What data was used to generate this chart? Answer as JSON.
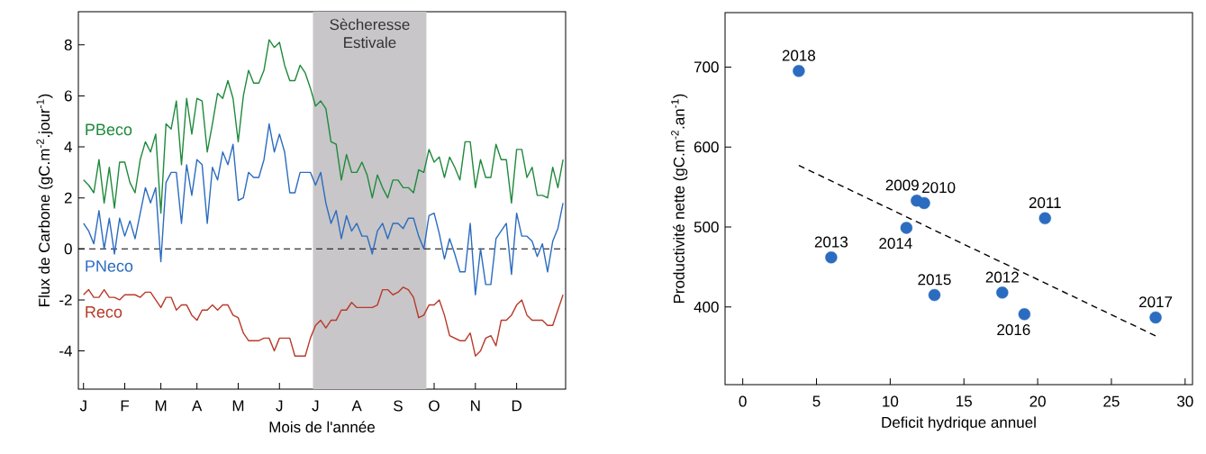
{
  "chart_data": [
    {
      "type": "line",
      "xlabel": "Mois de l'année",
      "ylabel": "Flux de Carbone (gC.m$^{-2}$.jour$^{-1}$)",
      "categories": [
        "J",
        null,
        null,
        null,
        null,
        null,
        null,
        null,
        "F",
        null,
        null,
        null,
        null,
        null,
        null,
        "M",
        null,
        null,
        null,
        null,
        null,
        null,
        "A",
        null,
        null,
        null,
        null,
        null,
        null,
        null,
        "M",
        null,
        null,
        null,
        null,
        null,
        null,
        null,
        "J",
        null,
        null,
        null,
        null,
        null,
        null,
        "J",
        null,
        null,
        null,
        null,
        null,
        null,
        null,
        "A",
        null,
        null,
        null,
        null,
        null,
        null,
        null,
        "S",
        null,
        null,
        null,
        null,
        null,
        null,
        "O",
        null,
        null,
        null,
        null,
        null,
        null,
        null,
        "N",
        null,
        null,
        null,
        null,
        null,
        null,
        null,
        "D",
        null,
        null,
        null,
        null,
        null,
        null,
        null,
        null,
        null
      ],
      "ylim": [
        -5.5,
        9.3
      ],
      "yticks": [
        -4,
        -2,
        0,
        2,
        4,
        6,
        8
      ],
      "annotations": [
        "Sècheresse Estivale"
      ],
      "ref_lines": [
        {
          "axis": "y",
          "value": 0,
          "color": "#000000",
          "line_style": "dashed"
        }
      ],
      "series": [
        {
          "name": "PBeco",
          "color": "#1f8a3c",
          "values": [
            2.7,
            2.5,
            2.2,
            3.5,
            1.8,
            3.2,
            1.6,
            3.4,
            3.4,
            2.6,
            2.2,
            3.5,
            4.2,
            3.8,
            4.5,
            1.4,
            4.9,
            4.7,
            5.8,
            3.3,
            5.9,
            4.5,
            5.9,
            5.8,
            3.8,
            4.9,
            6.1,
            5.9,
            6.6,
            5.9,
            4.2,
            6.0,
            7.0,
            6.5,
            6.5,
            7.0,
            8.2,
            7.9,
            8.1,
            7.2,
            6.6,
            6.6,
            7.2,
            6.9,
            6.3,
            5.6,
            5.8,
            5.5,
            4.2,
            4.1,
            2.7,
            3.7,
            3.0,
            3.0,
            3.4,
            2.9,
            2.0,
            2.9,
            2.4,
            2.0,
            2.7,
            2.7,
            2.4,
            2.4,
            2.2,
            3.1,
            3.0,
            3.9,
            3.4,
            3.6,
            2.8,
            3.6,
            3.2,
            2.7,
            4.2,
            4.2,
            2.4,
            3.5,
            2.8,
            2.8,
            4.1,
            3.5,
            3.5,
            1.8,
            3.9,
            3.9,
            2.8,
            3.2,
            2.1,
            2.1,
            2.0,
            3.2,
            2.4,
            3.5
          ]
        },
        {
          "name": "PNeco",
          "color": "#2b6cc0",
          "values": [
            1.0,
            0.7,
            0.2,
            1.5,
            0.0,
            1.2,
            -0.2,
            1.2,
            0.5,
            1.1,
            0.4,
            1.4,
            2.4,
            1.8,
            2.4,
            -0.5,
            2.6,
            3.0,
            3.0,
            1.0,
            3.3,
            2.1,
            3.5,
            3.3,
            1.0,
            3.2,
            2.7,
            3.8,
            3.3,
            4.1,
            1.9,
            2.0,
            3.0,
            2.8,
            2.8,
            3.5,
            4.9,
            3.8,
            4.5,
            3.8,
            2.2,
            2.2,
            3.0,
            3.0,
            3.0,
            2.5,
            3.0,
            1.8,
            1.0,
            1.5,
            0.4,
            1.3,
            0.7,
            1.0,
            0.5,
            0.5,
            -0.2,
            0.7,
            1.0,
            0.4,
            1.0,
            1.0,
            0.8,
            1.2,
            1.2,
            0.5,
            0.0,
            1.3,
            1.4,
            0.6,
            -0.4,
            0.4,
            -0.2,
            -0.9,
            -0.9,
            1.0,
            -1.8,
            0.0,
            -1.4,
            -1.4,
            0.4,
            0.7,
            1.0,
            -1.0,
            1.4,
            0.5,
            0.5,
            0.3,
            -0.3,
            0.2,
            -0.9,
            0.3,
            0.8,
            1.8
          ]
        },
        {
          "name": "Reco",
          "color": "#b83a2a",
          "values": [
            -1.8,
            -1.6,
            -1.9,
            -1.9,
            -1.6,
            -1.9,
            -1.9,
            -2.0,
            -1.8,
            -1.8,
            -1.8,
            -1.9,
            -1.7,
            -1.7,
            -2.0,
            -2.3,
            -1.9,
            -1.9,
            -2.4,
            -2.2,
            -2.2,
            -2.6,
            -2.8,
            -2.4,
            -2.4,
            -2.2,
            -2.4,
            -2.2,
            -2.2,
            -2.6,
            -2.7,
            -3.3,
            -3.6,
            -3.6,
            -3.6,
            -3.5,
            -3.5,
            -4.0,
            -3.5,
            -3.5,
            -3.5,
            -4.2,
            -4.2,
            -4.2,
            -3.5,
            -3.0,
            -2.8,
            -3.1,
            -2.8,
            -2.8,
            -2.4,
            -2.4,
            -2.1,
            -2.3,
            -2.3,
            -2.3,
            -2.3,
            -2.2,
            -1.6,
            -1.6,
            -1.8,
            -1.7,
            -1.5,
            -1.6,
            -1.9,
            -2.7,
            -2.6,
            -2.2,
            -2.2,
            -2.0,
            -2.6,
            -3.4,
            -3.5,
            -3.6,
            -3.6,
            -3.3,
            -4.2,
            -4.0,
            -3.5,
            -3.4,
            -3.8,
            -2.8,
            -2.8,
            -2.6,
            -2.2,
            -2.0,
            -2.6,
            -2.8,
            -2.8,
            -2.8,
            -3.0,
            -3.0,
            -2.4,
            -1.8
          ]
        }
      ]
    },
    {
      "type": "scatter",
      "xlabel": "Deficit hydrique annuel",
      "ylabel": "Productivité nette (gC.m$^{-2}$.an$^{-1}$)",
      "xlim": [
        -1.2,
        30.5
      ],
      "ylim": [
        303,
        768
      ],
      "xticks": [
        0,
        5,
        10,
        15,
        20,
        25,
        30
      ],
      "yticks": [
        400,
        500,
        600,
        700
      ],
      "series": [
        {
          "type": "scatter",
          "color": "#2b6cc0",
          "marker": "circle",
          "x": [
            3.8,
            6.0,
            11.1,
            11.8,
            12.3,
            13.0,
            17.6,
            19.1,
            20.5,
            28.0
          ],
          "values": [
            695,
            462,
            499,
            533,
            530,
            415,
            418,
            391,
            511,
            387
          ]
        },
        {
          "type": "line",
          "color": "#000000",
          "line_style": "dashed",
          "x": [
            3.8,
            28.0
          ],
          "values": [
            577,
            364
          ]
        }
      ],
      "annotations": [
        {
          "text": "2018",
          "x": 3.8,
          "y": 695
        },
        {
          "text": "2013",
          "x": 6.0,
          "y": 462
        },
        {
          "text": "2014",
          "x": 11.1,
          "y": 499
        },
        {
          "text": "2009",
          "x": 11.8,
          "y": 533
        },
        {
          "text": "2010",
          "x": 12.3,
          "y": 530
        },
        {
          "text": "2015",
          "x": 13.0,
          "y": 415
        },
        {
          "text": "2012",
          "x": 17.6,
          "y": 418
        },
        {
          "text": "2016",
          "x": 19.1,
          "y": 391
        },
        {
          "text": "2011",
          "x": 20.5,
          "y": 511
        },
        {
          "text": "2017",
          "x": 28.0,
          "y": 387
        }
      ]
    }
  ]
}
